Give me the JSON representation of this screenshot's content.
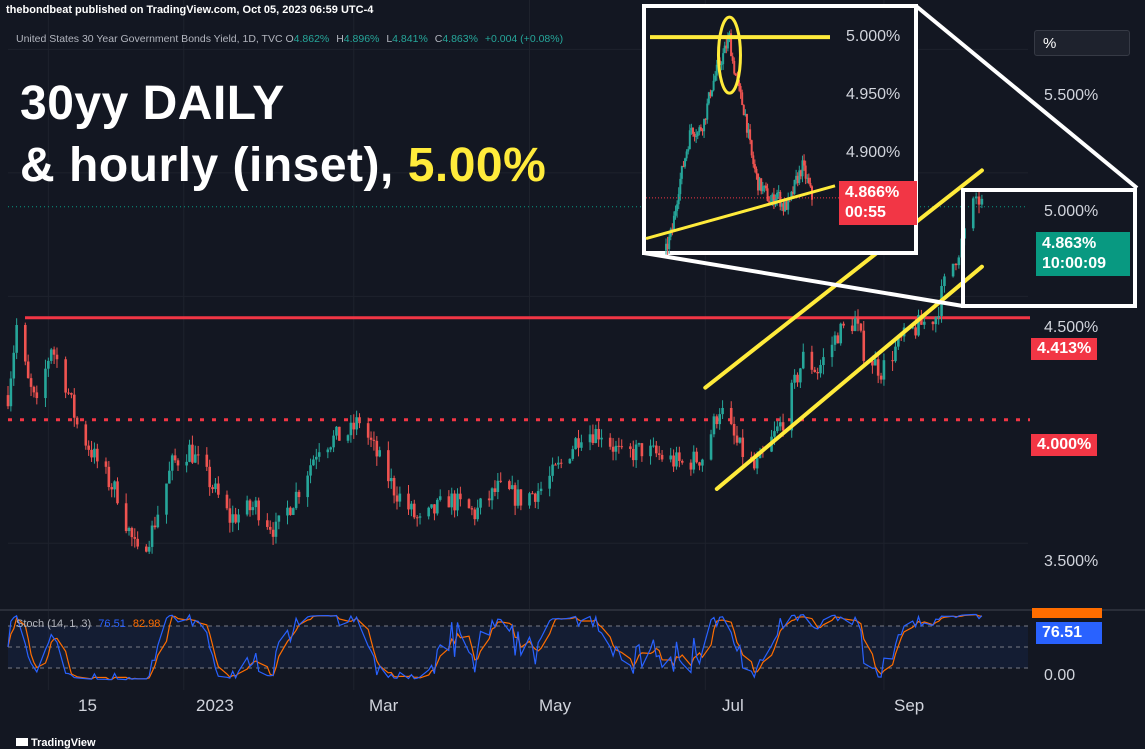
{
  "header": {
    "published_line": "thebondbeat published on TradingView.com, Oct 05, 2023 06:59 UTC-4",
    "symbol": "United States 30 Year Government Bonds Yield, 1D, TVC",
    "ohlc": {
      "o_label": "O",
      "o": "4.862%",
      "h_label": "H",
      "h": "4.896%",
      "l_label": "L",
      "l": "4.841%",
      "c_label": "C",
      "c": "4.863%",
      "change": "+0.004 (+0.08%)"
    }
  },
  "title": {
    "line1": "30yy DAILY",
    "line2_prefix": "& hourly (inset), ",
    "line2_highlight": "5.00%"
  },
  "scale_button": "%",
  "colors": {
    "background": "#131722",
    "up": "#26a69a",
    "down": "#ef5350",
    "annotation": "#ffeb3b",
    "level": "#f23645",
    "stoch_k": "#2962ff",
    "stoch_d": "#ff6d00",
    "price_badge": "#089981"
  },
  "chart_data": [
    {
      "type": "candlestick",
      "name": "daily",
      "x_ticks": [
        "15",
        "2023",
        "Mar",
        "May",
        "Jul",
        "Sep"
      ],
      "y_ticks": [
        "5.500%",
        "5.000%",
        "4.500%",
        "3.500%"
      ],
      "ylim": [
        3.25,
        5.7
      ],
      "price_badges": [
        {
          "label": "4.863%",
          "sub": "10:00:09",
          "color": "#089981"
        },
        {
          "label": "4.413%",
          "color": "#f23645"
        },
        {
          "label": "4.000%",
          "color": "#f23645"
        }
      ],
      "levels": [
        {
          "value": 4.413,
          "style": "solid",
          "color": "#f23645"
        },
        {
          "value": 4.0,
          "style": "dotted",
          "color": "#f23645"
        }
      ],
      "trend_channel": {
        "color": "#ffeb3b",
        "lower": [
          [
            "2023-07-05",
            3.72
          ],
          [
            "2023-10-05",
            4.62
          ]
        ],
        "upper": [
          [
            "2023-07-01",
            4.13
          ],
          [
            "2023-10-05",
            5.01
          ]
        ]
      },
      "waypoints": [
        [
          "2022-11-01",
          4.1
        ],
        [
          "2022-11-04",
          4.38
        ],
        [
          "2022-11-08",
          4.15
        ],
        [
          "2022-11-11",
          4.05
        ],
        [
          "2022-11-16",
          4.3
        ],
        [
          "2022-11-21",
          4.15
        ],
        [
          "2022-11-25",
          3.98
        ],
        [
          "2022-12-01",
          3.85
        ],
        [
          "2022-12-06",
          3.75
        ],
        [
          "2022-12-09",
          3.7
        ],
        [
          "2022-12-13",
          3.55
        ],
        [
          "2022-12-16",
          3.45
        ],
        [
          "2022-12-21",
          3.55
        ],
        [
          "2022-12-28",
          3.82
        ],
        [
          "2023-01-03",
          3.88
        ],
        [
          "2023-01-10",
          3.75
        ],
        [
          "2023-01-17",
          3.6
        ],
        [
          "2023-01-26",
          3.65
        ],
        [
          "2023-02-02",
          3.55
        ],
        [
          "2023-02-10",
          3.72
        ],
        [
          "2023-02-17",
          3.9
        ],
        [
          "2023-02-28",
          3.95
        ],
        [
          "2023-03-03",
          4.0
        ],
        [
          "2023-03-08",
          3.88
        ],
        [
          "2023-03-15",
          3.72
        ],
        [
          "2023-03-24",
          3.58
        ],
        [
          "2023-04-03",
          3.68
        ],
        [
          "2023-04-12",
          3.62
        ],
        [
          "2023-04-20",
          3.72
        ],
        [
          "2023-04-28",
          3.68
        ],
        [
          "2023-05-05",
          3.72
        ],
        [
          "2023-05-12",
          3.82
        ],
        [
          "2023-05-19",
          3.95
        ],
        [
          "2023-05-26",
          3.95
        ],
        [
          "2023-06-02",
          3.85
        ],
        [
          "2023-06-09",
          3.88
        ],
        [
          "2023-06-16",
          3.85
        ],
        [
          "2023-06-23",
          3.82
        ],
        [
          "2023-06-30",
          3.85
        ],
        [
          "2023-07-06",
          4.05
        ],
        [
          "2023-07-12",
          3.9
        ],
        [
          "2023-07-18",
          3.8
        ],
        [
          "2023-07-21",
          3.85
        ],
        [
          "2023-07-28",
          4.0
        ],
        [
          "2023-08-04",
          4.25
        ],
        [
          "2023-08-09",
          4.2
        ],
        [
          "2023-08-16",
          4.35
        ],
        [
          "2023-08-22",
          4.4
        ],
        [
          "2023-08-25",
          4.28
        ],
        [
          "2023-08-31",
          4.2
        ],
        [
          "2023-09-07",
          4.32
        ],
        [
          "2023-09-13",
          4.38
        ],
        [
          "2023-09-19",
          4.42
        ],
        [
          "2023-09-22",
          4.55
        ],
        [
          "2023-09-28",
          4.72
        ],
        [
          "2023-10-03",
          4.9
        ],
        [
          "2023-10-04",
          4.88
        ],
        [
          "2023-10-05",
          4.863
        ]
      ]
    },
    {
      "type": "candlestick",
      "name": "hourly_inset",
      "y_ticks": [
        "5.000%",
        "4.950%",
        "4.900%"
      ],
      "ylim": [
        4.82,
        5.026
      ],
      "price_badge": {
        "label": "4.866%",
        "sub": "00:55",
        "color": "#f23645"
      },
      "annotations": {
        "resistance_level": 5.0,
        "color": "#ffeb3b"
      },
      "waypoints": [
        [
          0,
          4.822
        ],
        [
          2,
          4.84
        ],
        [
          4,
          4.875
        ],
        [
          6,
          4.9
        ],
        [
          8,
          4.925
        ],
        [
          10,
          4.92
        ],
        [
          12,
          4.93
        ],
        [
          14,
          4.955
        ],
        [
          16,
          4.972
        ],
        [
          18,
          4.985
        ],
        [
          20,
          5.0
        ],
        [
          21,
          4.98
        ],
        [
          23,
          4.955
        ],
        [
          25,
          4.935
        ],
        [
          27,
          4.9
        ],
        [
          29,
          4.878
        ],
        [
          31,
          4.872
        ],
        [
          33,
          4.862
        ],
        [
          35,
          4.87
        ],
        [
          37,
          4.858
        ],
        [
          39,
          4.862
        ],
        [
          41,
          4.88
        ],
        [
          43,
          4.892
        ],
        [
          45,
          4.876
        ],
        [
          46,
          4.866
        ]
      ]
    },
    {
      "type": "line",
      "name": "Stoch (14, 1, 3)",
      "legend_label": "Stoch (14, 1, 3)",
      "k_value": "76.51",
      "d_value": "82.98",
      "badge": "76.51",
      "y_ticks": [
        "0.00"
      ],
      "ylim": [
        0,
        100
      ],
      "bands": [
        80,
        50,
        20
      ]
    }
  ],
  "footer": {
    "brand": "TradingView"
  }
}
